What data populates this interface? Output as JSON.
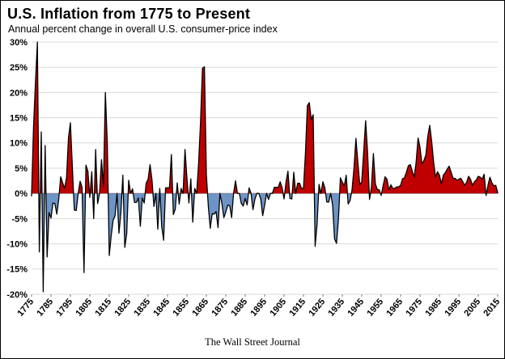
{
  "header": {
    "title": "U.S. Inflation from 1775 to Present",
    "subtitle": "Annual percent change in overall U.S. consumer-price index"
  },
  "footer": {
    "source": "The Wall Street Journal"
  },
  "chart_data": {
    "type": "area",
    "title": "U.S. Inflation from 1775 to Present",
    "subtitle": "Annual percent change in overall U.S. consumer-price index",
    "source": "The Wall Street Journal",
    "xlabel": "",
    "ylabel": "",
    "ylim": [
      -20,
      30
    ],
    "ytick_step": 5,
    "ytick_labels": [
      "30%",
      "25%",
      "20%",
      "15%",
      "10%",
      "5%",
      "0%",
      "-5%",
      "-10%",
      "-15%",
      "-20%"
    ],
    "x": {
      "start": 1775,
      "end": 2015,
      "step": 1
    },
    "xticks": [
      1775,
      1785,
      1795,
      1805,
      1815,
      1825,
      1835,
      1845,
      1855,
      1865,
      1875,
      1885,
      1895,
      1905,
      1915,
      1925,
      1935,
      1945,
      1955,
      1965,
      1975,
      1985,
      1995,
      2005,
      2015
    ],
    "grid": true,
    "legend": "none",
    "colors": {
      "positive_fill": "#c00000",
      "negative_fill": "#6d94c6",
      "line": "#000000",
      "grid": "#d9d9d9",
      "zero_line": "#7f7f7f"
    },
    "values": [
      -0.5,
      13.0,
      21.9,
      30.0,
      -11.6,
      12.2,
      -19.5,
      9.5,
      -12.6,
      -3.8,
      -4.9,
      -1.9,
      -2.0,
      -4.1,
      -1.1,
      3.3,
      2.1,
      1.0,
      3.1,
      11.0,
      14.0,
      5.3,
      -3.3,
      -3.4,
      0.0,
      2.4,
      1.2,
      -15.7,
      5.6,
      4.4,
      -0.8,
      4.3,
      -5.0,
      8.7,
      -2.0,
      0.0,
      6.7,
      1.3,
      20.0,
      9.9,
      -12.3,
      -8.4,
      -5.3,
      -4.4,
      0.0,
      -7.9,
      -3.7,
      3.6,
      -10.7,
      -7.9,
      2.6,
      0.0,
      0.9,
      -1.8,
      -1.8,
      -0.9,
      -6.5,
      -0.9,
      -1.9,
      2.0,
      2.8,
      5.7,
      2.7,
      -2.6,
      0.0,
      -7.1,
      1.0,
      -6.5,
      -9.3,
      1.1,
      1.1,
      1.1,
      7.7,
      -4.2,
      -3.1,
      2.1,
      -2.1,
      1.0,
      0.0,
      8.7,
      3.0,
      -1.9,
      2.9,
      -5.7,
      1.0,
      0.0,
      5.9,
      14.2,
      24.8,
      25.1,
      3.7,
      -2.5,
      -6.9,
      -4.0,
      -4.1,
      -3.6,
      -6.8,
      0.0,
      -2.0,
      -4.8,
      -3.7,
      -2.3,
      -2.4,
      -4.8,
      0.0,
      2.5,
      0.0,
      0.0,
      -2.0,
      -2.5,
      -1.0,
      -2.3,
      1.1,
      0.0,
      -3.2,
      -1.1,
      0.0,
      0.0,
      -1.1,
      -4.4,
      -2.3,
      0.0,
      -1.2,
      0.0,
      0.0,
      1.2,
      1.2,
      1.2,
      2.3,
      1.1,
      -1.1,
      2.2,
      4.4,
      -1.0,
      -1.1,
      4.2,
      0.0,
      2.0,
      2.0,
      1.0,
      1.0,
      7.9,
      17.4,
      18.0,
      14.6,
      15.6,
      -10.5,
      -6.1,
      1.8,
      0.0,
      2.3,
      1.1,
      -1.7,
      -1.7,
      0.0,
      -2.3,
      -9.0,
      -9.9,
      -5.1,
      3.1,
      2.2,
      1.5,
      3.6,
      -2.1,
      -1.4,
      0.7,
      5.0,
      10.9,
      6.1,
      1.7,
      2.3,
      8.3,
      14.4,
      8.1,
      -1.2,
      1.3,
      7.9,
      1.9,
      0.8,
      0.7,
      -0.4,
      1.5,
      3.3,
      2.8,
      0.7,
      1.7,
      1.0,
      1.0,
      1.3,
      1.3,
      1.6,
      2.9,
      3.1,
      4.2,
      5.5,
      5.7,
      4.4,
      3.2,
      6.2,
      11.0,
      9.1,
      5.8,
      6.5,
      7.6,
      11.3,
      13.5,
      10.3,
      6.2,
      3.2,
      4.3,
      3.6,
      1.9,
      3.6,
      4.1,
      4.8,
      5.4,
      4.2,
      3.0,
      3.0,
      2.6,
      2.8,
      3.0,
      2.3,
      1.6,
      2.2,
      3.4,
      2.8,
      1.6,
      2.3,
      2.7,
      3.4,
      3.2,
      2.8,
      3.8,
      -0.4,
      1.6,
      3.2,
      2.1,
      1.5,
      1.6,
      0.1
    ]
  }
}
